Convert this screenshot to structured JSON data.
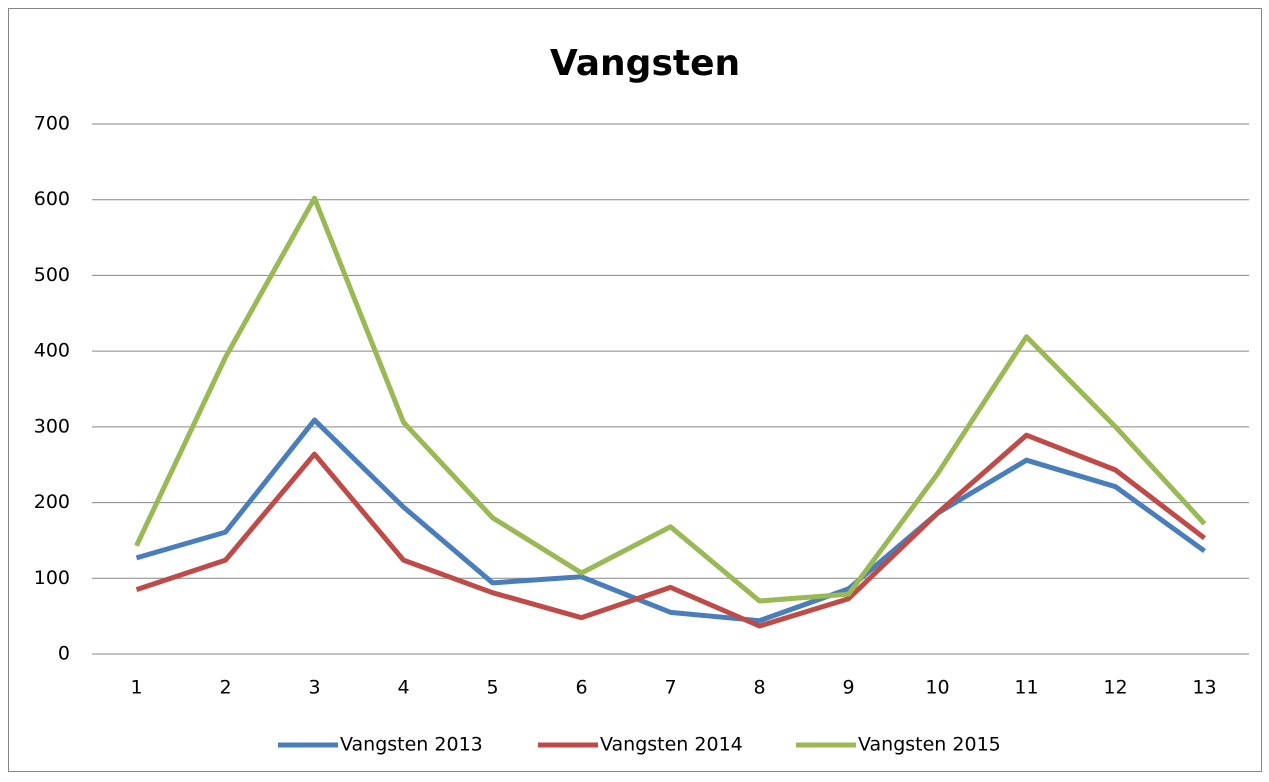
{
  "chart_data": {
    "type": "line",
    "title": "Vangsten",
    "categories": [
      "1",
      "2",
      "3",
      "4",
      "5",
      "6",
      "7",
      "8",
      "9",
      "10",
      "11",
      "12",
      "13"
    ],
    "series": [
      {
        "name": "Vangsten 2013",
        "color": "#4a7ebb",
        "values": [
          127,
          161,
          309,
          194,
          94,
          102,
          55,
          44,
          86,
          186,
          256,
          221,
          136
        ]
      },
      {
        "name": "Vangsten 2014",
        "color": "#be4b48",
        "values": [
          85,
          124,
          264,
          124,
          81,
          48,
          88,
          37,
          73,
          186,
          289,
          243,
          153
        ]
      },
      {
        "name": "Vangsten 2015",
        "color": "#98b954",
        "values": [
          143,
          392,
          602,
          306,
          180,
          107,
          168,
          70,
          79,
          238,
          419,
          300,
          172
        ]
      }
    ],
    "ylim": [
      0,
      700
    ],
    "yticks": [
      0,
      100,
      200,
      300,
      400,
      500,
      600,
      700
    ],
    "grid": true,
    "legend": "bottom"
  }
}
